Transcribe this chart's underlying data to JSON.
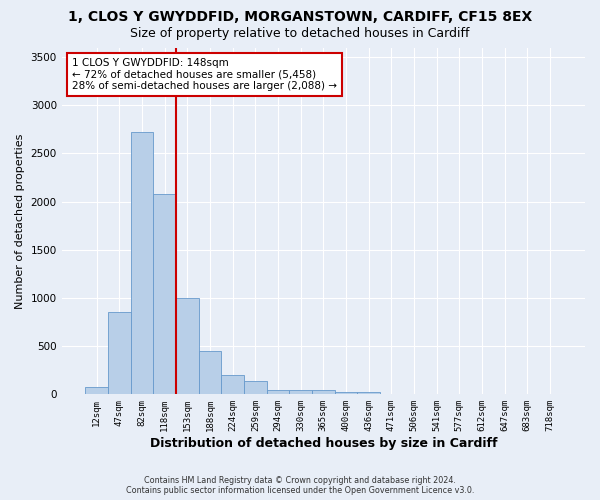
{
  "title_line1": "1, CLOS Y GWYDDFID, MORGANSTOWN, CARDIFF, CF15 8EX",
  "title_line2": "Size of property relative to detached houses in Cardiff",
  "xlabel": "Distribution of detached houses by size in Cardiff",
  "ylabel": "Number of detached properties",
  "bin_labels": [
    "12sqm",
    "47sqm",
    "82sqm",
    "118sqm",
    "153sqm",
    "188sqm",
    "224sqm",
    "259sqm",
    "294sqm",
    "330sqm",
    "365sqm",
    "400sqm",
    "436sqm",
    "471sqm",
    "506sqm",
    "541sqm",
    "577sqm",
    "612sqm",
    "647sqm",
    "683sqm",
    "718sqm"
  ],
  "bar_heights": [
    75,
    850,
    2725,
    2075,
    1000,
    450,
    200,
    135,
    50,
    50,
    40,
    20,
    20,
    5,
    0,
    0,
    0,
    0,
    0,
    0,
    0
  ],
  "bar_color": "#b8cfe8",
  "bar_edgecolor": "#6699cc",
  "vline_x_index": 3.5,
  "vline_color": "#cc0000",
  "annotation_text": "1 CLOS Y GWYDDFID: 148sqm\n← 72% of detached houses are smaller (5,458)\n28% of semi-detached houses are larger (2,088) →",
  "annotation_box_facecolor": "#ffffff",
  "annotation_box_edgecolor": "#cc0000",
  "ylim": [
    0,
    3600
  ],
  "yticks": [
    0,
    500,
    1000,
    1500,
    2000,
    2500,
    3000,
    3500
  ],
  "footer_line1": "Contains HM Land Registry data © Crown copyright and database right 2024.",
  "footer_line2": "Contains public sector information licensed under the Open Government Licence v3.0.",
  "bg_color": "#e8eef7",
  "title1_fontsize": 10,
  "title2_fontsize": 9,
  "xlabel_fontsize": 9,
  "ylabel_fontsize": 8
}
